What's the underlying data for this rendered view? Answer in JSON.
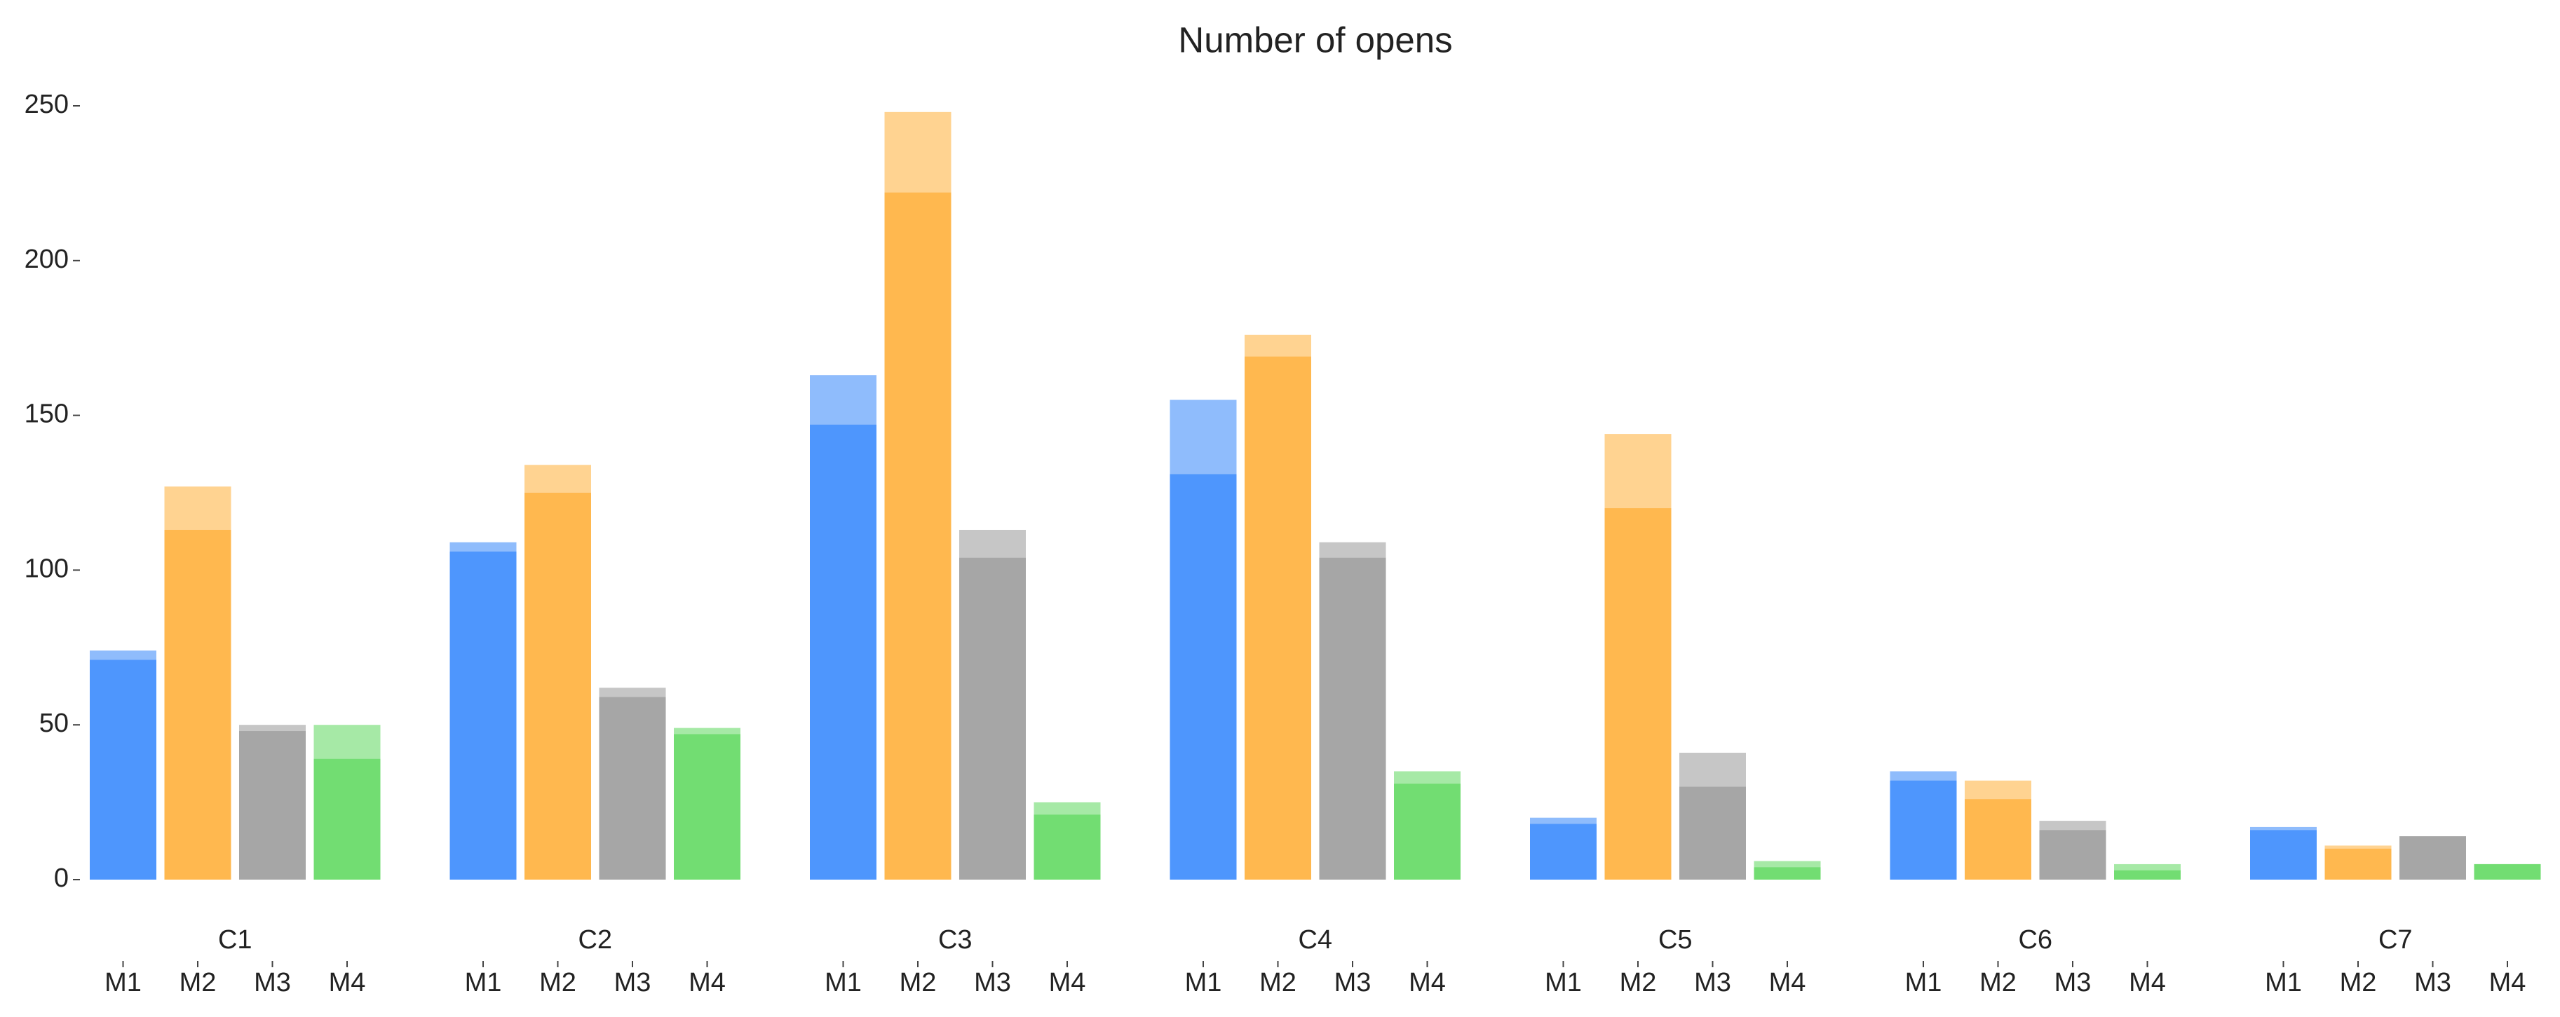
{
  "chart_data": {
    "type": "grouped_overlay_bar",
    "title": "Number of opens",
    "categories": [
      "C1",
      "C2",
      "C3",
      "C4",
      "C5",
      "C6",
      "C7"
    ],
    "series": [
      {
        "name": "M1",
        "color": "#4e96fd",
        "total_color": "#8fbcfc",
        "values": [
          71,
          106,
          147,
          131,
          18,
          32,
          16
        ],
        "totals": [
          74,
          109,
          163,
          155,
          20,
          35,
          17
        ]
      },
      {
        "name": "M2",
        "color": "#ffb84f",
        "total_color": "#ffd391",
        "values": [
          113,
          125,
          222,
          169,
          120,
          26,
          10
        ],
        "totals": [
          127,
          134,
          248,
          176,
          144,
          32,
          11
        ]
      },
      {
        "name": "M3",
        "color": "#a6a6a6",
        "total_color": "#c6c6c6",
        "values": [
          48,
          59,
          104,
          104,
          30,
          16,
          14
        ],
        "totals": [
          50,
          62,
          113,
          109,
          41,
          19,
          14
        ]
      },
      {
        "name": "M4",
        "color": "#72dd72",
        "total_color": "#a6e9a6",
        "values": [
          39,
          47,
          21,
          31,
          4,
          3,
          5
        ],
        "totals": [
          50,
          49,
          25,
          35,
          6,
          5,
          5
        ]
      }
    ],
    "ylim": [
      0,
      250
    ],
    "yticks": [
      0,
      50,
      100,
      150,
      200,
      250
    ],
    "grid": false
  }
}
